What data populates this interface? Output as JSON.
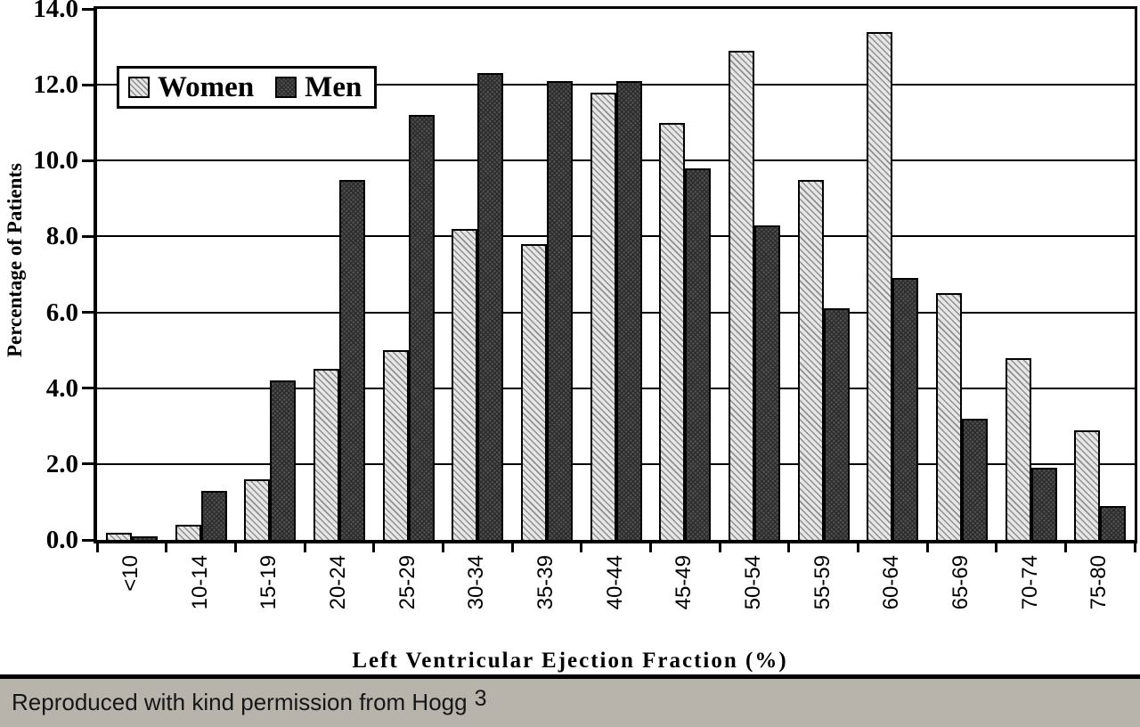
{
  "chart_data": {
    "type": "bar",
    "categories": [
      "<10",
      "10-14",
      "15-19",
      "20-24",
      "25-29",
      "30-34",
      "35-39",
      "40-44",
      "45-49",
      "50-54",
      "55-59",
      "60-64",
      "65-69",
      "70-74",
      "75-80"
    ],
    "series": [
      {
        "name": "Women",
        "values": [
          0.2,
          0.4,
          1.6,
          4.5,
          5.0,
          8.2,
          7.8,
          11.8,
          11.0,
          12.9,
          9.5,
          13.4,
          6.5,
          4.8,
          2.9
        ]
      },
      {
        "name": "Men",
        "values": [
          0.1,
          1.3,
          4.2,
          9.5,
          11.2,
          12.3,
          12.1,
          12.1,
          9.8,
          8.3,
          6.1,
          6.9,
          3.2,
          1.9,
          0.9
        ]
      }
    ],
    "title": "",
    "xlabel": "Left Ventricular Ejection Fraction (%)",
    "ylabel": "Percentage of Patients",
    "ylim": [
      0,
      14
    ],
    "ytick_interval": 2,
    "ytick_labels": [
      "0.0",
      "2.0",
      "4.0",
      "6.0",
      "8.0",
      "10.0",
      "12.0",
      "14.0"
    ],
    "grid": "horizontal",
    "legend_position": "top-left-inside",
    "bar_style": {
      "women": "light diagonal hatch",
      "men": "dark crosshatch"
    }
  },
  "caption": {
    "text": "Reproduced with kind permission from Hogg",
    "reference_superscript": "3"
  },
  "colors": {
    "women_fill": "#e6e6e6",
    "women_hatch": "#8f8f8f",
    "men_fill": "#4f4f4f",
    "men_hatch": "#2b2b2b",
    "axis": "#000000",
    "caption_bg": "#b8b4ab",
    "caption_text": "#161616"
  }
}
